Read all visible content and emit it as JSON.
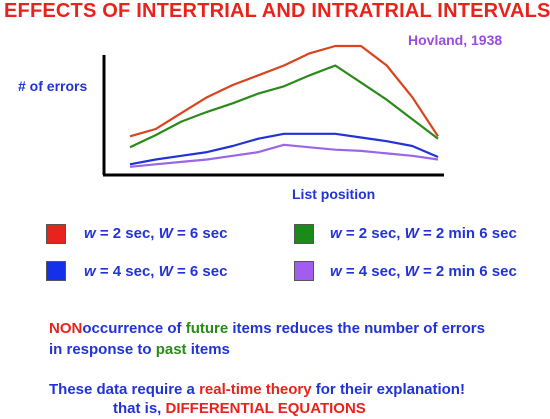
{
  "header": {
    "title": "EFFECTS OF INTERTRIAL AND INTRATRIAL INTERVALS",
    "author": "Hovland, 1938"
  },
  "chart_data": {
    "type": "line",
    "ylabel": "# of errors",
    "xlabel": "List position",
    "x": [
      1,
      2,
      3,
      4,
      5,
      6,
      7,
      8,
      9,
      10,
      11,
      12,
      13
    ],
    "ylim": [
      0,
      100
    ],
    "grid": false,
    "series": [
      {
        "key": "s1",
        "color": "#d9431f",
        "values": [
          26,
          32,
          45,
          58,
          68,
          76,
          84,
          94,
          100,
          100,
          84,
          58,
          26
        ]
      },
      {
        "key": "s2",
        "color": "#2a8a1a",
        "values": [
          17,
          27,
          38,
          46,
          53,
          61,
          67,
          76,
          84,
          70,
          56,
          40,
          24
        ]
      },
      {
        "key": "s3",
        "color": "#2233d6",
        "values": [
          3,
          7,
          10,
          13,
          18,
          24,
          28,
          28,
          28,
          25,
          22,
          18,
          9
        ]
      },
      {
        "key": "s4",
        "color": "#9a66e6",
        "values": [
          1,
          3,
          5,
          7,
          10,
          13,
          19,
          17,
          15,
          14,
          12,
          10,
          7
        ]
      }
    ]
  },
  "legend": {
    "items": [
      {
        "color": "#e8231c",
        "w_label": "w",
        "w_val": " = 2 sec, ",
        "W_label": "W",
        "W_val": " = 6 sec"
      },
      {
        "color": "#1a8a1a",
        "w_label": "w",
        "w_val": " = 2 sec, ",
        "W_label": "W",
        "W_val": " = 2 min 6 sec"
      },
      {
        "color": "#1430e8",
        "w_label": "w",
        "w_val": " = 4 sec, ",
        "W_label": "W",
        "W_val": " = 6 sec"
      },
      {
        "color": "#a35cf0",
        "w_label": "w",
        "w_val": " = 4 sec, ",
        "W_label": "W",
        "W_val": " = 2 min 6 sec"
      }
    ]
  },
  "notes": {
    "line1_a": "NON",
    "line1_b": "occurrence of ",
    "line1_c": "future",
    "line1_d": " items reduces the number of errors",
    "line2_a": "in response to ",
    "line2_b": "past",
    "line2_c": " items",
    "line3_a": "These data require a ",
    "line3_b": "real-time theory",
    "line3_c": " for their explanation!",
    "line4_a": "that is, ",
    "line4_b": "DIFFERENTIAL EQUATIONS"
  }
}
